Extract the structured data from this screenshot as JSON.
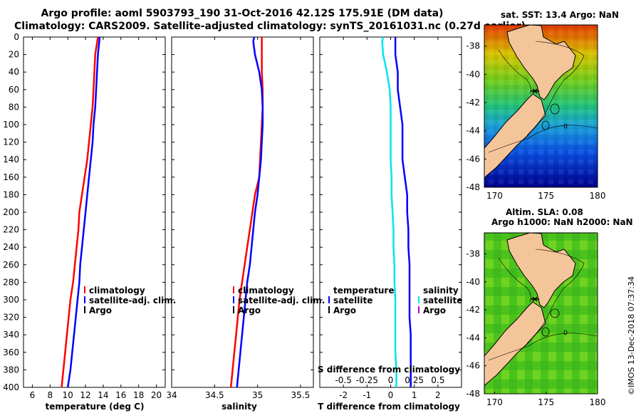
{
  "header": {
    "title_line1": "Argo profile: aoml 5903793_190 31-Oct-2016 42.12S 175.91E (DM data)",
    "title_line2": "Climatology: CARS2009. Satellite-adjusted climatology: synTS_20161031.nc (0.27d earlier)"
  },
  "colors": {
    "climatology": "#ff0000",
    "satellite": "#0000ff",
    "argo": "#000000",
    "satellite_s": "#00e5ee",
    "argo_s": "#c000c0",
    "land": "#f5c59a"
  },
  "chart_data": [
    {
      "type": "line",
      "id": "temperature",
      "xlabel": "temperature (deg C)",
      "ylabel": "",
      "xlim": [
        5,
        21
      ],
      "ylim": [
        400,
        0
      ],
      "xticks": [
        6,
        8,
        10,
        12,
        14,
        16,
        18,
        20
      ],
      "yticks": [
        0,
        20,
        40,
        60,
        80,
        100,
        120,
        140,
        160,
        180,
        200,
        220,
        240,
        260,
        280,
        300,
        320,
        340,
        360,
        380,
        400
      ],
      "legend": [
        "climatology",
        "satellite-adj. clim.",
        "Argo"
      ],
      "legend_position": "lower-right",
      "series": [
        {
          "name": "climatology",
          "color": "#ff0000",
          "depth": [
            0,
            20,
            40,
            60,
            80,
            100,
            120,
            140,
            160,
            180,
            200,
            220,
            240,
            260,
            280,
            300,
            320,
            340,
            360,
            380,
            400
          ],
          "values": [
            13.4,
            13.1,
            13.0,
            12.9,
            12.8,
            12.6,
            12.4,
            12.2,
            11.9,
            11.6,
            11.3,
            11.2,
            11.0,
            10.8,
            10.6,
            10.3,
            10.1,
            9.9,
            9.7,
            9.5,
            9.3
          ]
        },
        {
          "name": "satellite-adj. clim.",
          "color": "#0000ff",
          "depth": [
            0,
            20,
            40,
            60,
            80,
            100,
            120,
            140,
            160,
            180,
            200,
            220,
            240,
            260,
            280,
            300,
            320,
            340,
            360,
            380,
            400
          ],
          "values": [
            13.6,
            13.4,
            13.3,
            13.2,
            13.1,
            12.9,
            12.8,
            12.6,
            12.4,
            12.2,
            12.0,
            11.8,
            11.6,
            11.4,
            11.3,
            11.1,
            10.9,
            10.7,
            10.5,
            10.3,
            10.0
          ]
        }
      ]
    },
    {
      "type": "line",
      "id": "salinity",
      "xlabel": "salinity",
      "ylabel": "",
      "xlim": [
        34,
        35.65
      ],
      "ylim": [
        400,
        0
      ],
      "xticks": [
        34,
        34.5,
        35,
        35.5
      ],
      "xticklabels": [
        "34",
        "34.5",
        "35",
        "35.5"
      ],
      "legend": [
        "climatology",
        "satellite-adj. clim.",
        "Argo"
      ],
      "legend_position": "lower-right",
      "series": [
        {
          "name": "climatology",
          "color": "#ff0000",
          "depth": [
            0,
            20,
            40,
            60,
            80,
            100,
            120,
            140,
            160,
            180,
            200,
            220,
            240,
            260,
            280,
            300,
            320,
            340,
            360,
            380,
            400
          ],
          "values": [
            35.05,
            35.05,
            35.05,
            35.06,
            35.06,
            35.05,
            35.04,
            35.03,
            35.02,
            34.97,
            34.94,
            34.91,
            34.88,
            34.85,
            34.82,
            34.79,
            34.77,
            34.75,
            34.73,
            34.71,
            34.69
          ]
        },
        {
          "name": "satellite-adj. clim.",
          "color": "#0000ff",
          "depth": [
            0,
            5,
            20,
            40,
            60,
            80,
            100,
            120,
            140,
            160,
            180,
            200,
            220,
            240,
            260,
            280,
            300,
            320,
            340,
            360,
            380,
            400
          ],
          "values": [
            34.96,
            34.95,
            34.97,
            35.02,
            35.05,
            35.06,
            35.06,
            35.05,
            35.04,
            35.02,
            35.0,
            34.97,
            34.95,
            34.93,
            34.91,
            34.88,
            34.86,
            34.84,
            34.82,
            34.8,
            34.78,
            34.76
          ]
        }
      ]
    },
    {
      "type": "line",
      "id": "difference",
      "xlabel": "T difference from climatology",
      "xlabel_top": "S difference from climatology",
      "xlim": [
        -3,
        3
      ],
      "ylim": [
        400,
        0
      ],
      "xticks": [
        -2,
        -1,
        0,
        1,
        2
      ],
      "xticks_s": [
        -0.5,
        -0.25,
        0,
        0.25,
        0.5
      ],
      "xticklabels_s": [
        "-0.5",
        "-0.25",
        "0",
        "0.25",
        "0.5"
      ],
      "legend_temperature": {
        "heading": "temperature",
        "items": [
          "satellite",
          "Argo"
        ]
      },
      "legend_salinity": {
        "heading": "salinity",
        "items": [
          "satellite",
          "Argo"
        ]
      },
      "series": [
        {
          "name": "T satellite",
          "color": "#0000ff",
          "depth": [
            0,
            20,
            40,
            60,
            80,
            100,
            120,
            140,
            160,
            180,
            200,
            220,
            240,
            260,
            280,
            300,
            320,
            340,
            360,
            380,
            400
          ],
          "values": [
            0.2,
            0.2,
            0.3,
            0.3,
            0.4,
            0.5,
            0.5,
            0.5,
            0.6,
            0.7,
            0.7,
            0.75,
            0.75,
            0.8,
            0.8,
            0.8,
            0.8,
            0.85,
            0.85,
            0.85,
            0.85
          ]
        },
        {
          "name": "S satellite",
          "color": "#00e5ee",
          "depth": [
            0,
            5,
            20,
            40,
            60,
            80,
            100,
            120,
            140,
            160,
            180,
            200,
            220,
            240,
            260,
            280,
            300,
            320,
            340,
            360,
            380,
            400
          ],
          "values": [
            -0.08,
            -0.09,
            -0.08,
            -0.04,
            -0.01,
            0.0,
            0.0,
            0.0,
            0.0,
            0.01,
            0.01,
            0.02,
            0.03,
            0.03,
            0.04,
            0.04,
            0.05,
            0.05,
            0.05,
            0.05,
            0.06,
            0.06
          ]
        }
      ]
    },
    {
      "type": "heatmap",
      "id": "sst-map",
      "title": "sat. SST: 13.4 Argo: NaN",
      "xlim": [
        169,
        180
      ],
      "ylim": [
        -48,
        -36.5
      ],
      "xticks": [
        170,
        175,
        180
      ],
      "yticks": [
        -38,
        -40,
        -42,
        -44,
        -46,
        -48
      ],
      "argo_position": [
        175.91,
        -42.12
      ]
    },
    {
      "type": "heatmap",
      "id": "sla-map",
      "title_line1": "Altim. SLA: 0.08",
      "title_line2": "Argo h1000: NaN h2000: NaN",
      "xlim": [
        169,
        180
      ],
      "ylim": [
        -48,
        -36.5
      ],
      "xticks": [
        170,
        175,
        180
      ],
      "yticks": [
        -38,
        -40,
        -42,
        -44,
        -46,
        -48
      ],
      "argo_position": [
        175.91,
        -42.12
      ]
    }
  ],
  "footer": {
    "stamp": "©IMOS 13-Dec-2018 07:37:34"
  }
}
